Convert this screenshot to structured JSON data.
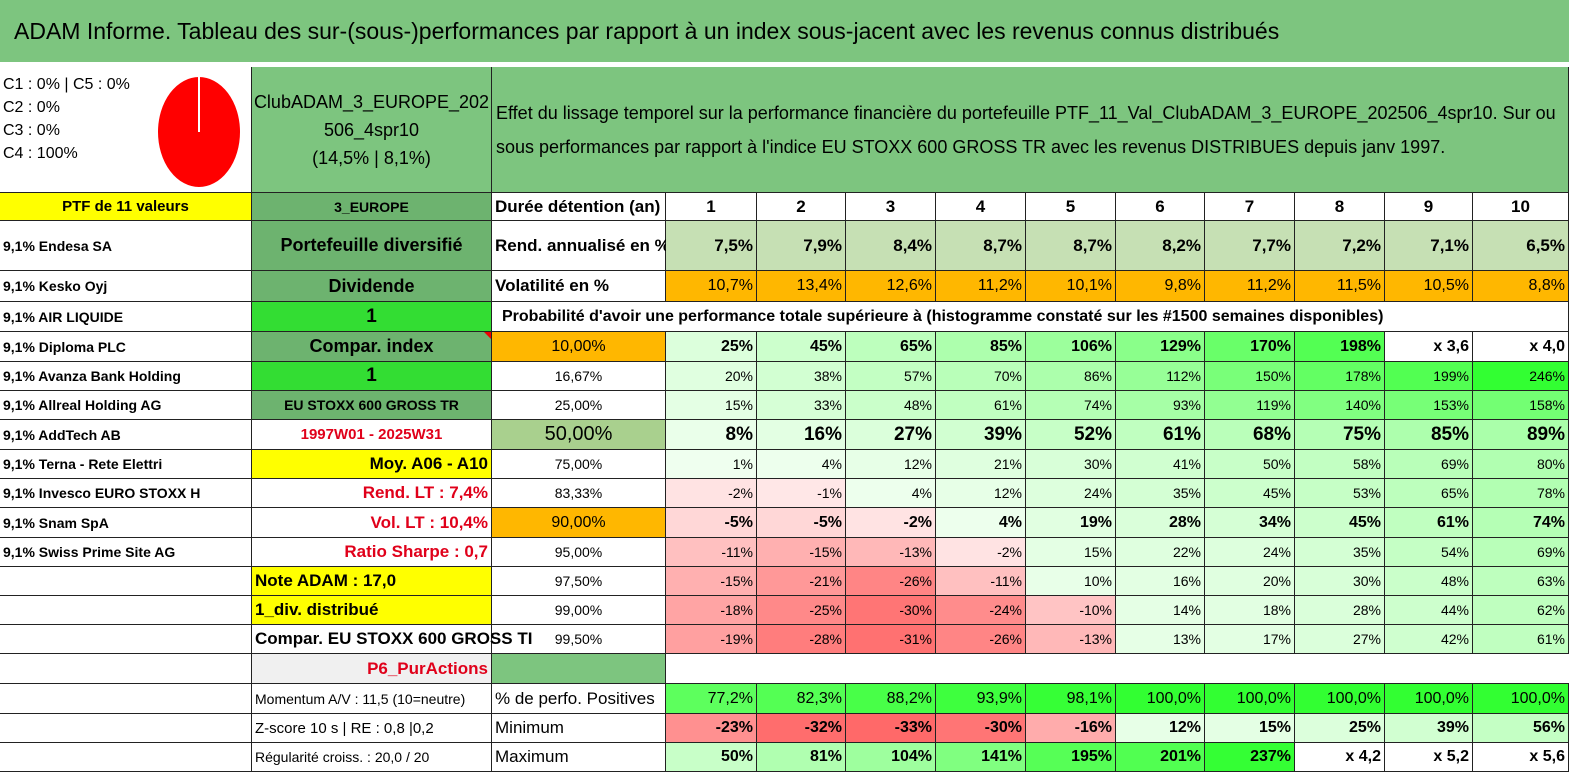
{
  "title": "ADAM Informe. Tableau des sur-(sous-)performances par rapport à un index sous-jacent avec les revenus connus distribués",
  "allocation": {
    "lines": [
      "C1 : 0% | C5 : 0%",
      "C2 : 0%",
      "C3 : 0%",
      "C4 : 100%"
    ],
    "pie_color": "#ff0000",
    "pie_share": 1.0
  },
  "portfolio": {
    "name_line1": "ClubADAM_3_EUROPE_202",
    "name_line2": "506_4spr10",
    "name_line3": "(14,5% | 8,1%)",
    "description": "Effet du lissage temporel sur la performance financière du portefeuille PTF_11_Val_ClubADAM_3_EUROPE_202506_4spr10. Sur ou sous performances par rapport à l'indice EU STOXX 600 GROSS TR avec les revenus DISTRIBUES depuis janv 1997."
  },
  "holdings_header": "PTF de 11 valeurs",
  "holdings": [
    "9,1% Endesa SA",
    "9,1% Kesko Oyj",
    "9,1% AIR LIQUIDE",
    "9,1% Diploma PLC",
    "9,1% Avanza Bank Holding",
    "9,1% Allreal Holding AG",
    "9,1% AddTech AB",
    "9,1% Terna - Rete Elettri",
    "9,1% Invesco EURO STOXX H",
    "9,1% Snam SpA",
    "9,1% Swiss Prime Site AG"
  ],
  "info": [
    "3_EUROPE",
    "Portefeuille diversifié",
    "Dividende",
    "1",
    "Compar. index",
    "1",
    "EU STOXX 600 GROSS TR",
    "1997W01 - 2025W31",
    "Moy. A06 - A10",
    "Rend. LT : 7,4%",
    "Vol. LT : 10,4%",
    "Ratio Sharpe : 0,7",
    "Note ADAM : 17,0",
    "1_div. distribué",
    "Compar. EU STOXX 600 GROSS TI",
    "P6_PurActions",
    "Momentum A/V : 11,5 (10=neutre)",
    "Z-score 10 s | RE : 0,8 |0,2",
    "Régularité croiss. : 20,0 / 20"
  ],
  "table": {
    "duration_label": "Durée détention (an)",
    "years": [
      "1",
      "2",
      "3",
      "4",
      "5",
      "6",
      "7",
      "8",
      "9",
      "10"
    ],
    "return_label": "Rend. annualisé en %",
    "returns": [
      "7,5%",
      "7,9%",
      "8,4%",
      "8,7%",
      "8,7%",
      "8,2%",
      "7,7%",
      "7,2%",
      "7,1%",
      "6,5%"
    ],
    "vol_label": "Volatilité en %",
    "vols": [
      "10,7%",
      "13,4%",
      "12,6%",
      "11,2%",
      "10,1%",
      "9,8%",
      "11,2%",
      "11,5%",
      "10,5%",
      "8,8%"
    ],
    "prob_label": "Probabilité d'avoir une performance totale supérieure à (histogramme constaté sur les #1500 semaines disponibles)",
    "quantiles": [
      {
        "p": "10,00%",
        "v": [
          "25%",
          "45%",
          "65%",
          "85%",
          "106%",
          "129%",
          "170%",
          "198%",
          "x 3,6",
          "x 4,0"
        ]
      },
      {
        "p": "16,67%",
        "v": [
          "20%",
          "38%",
          "57%",
          "70%",
          "86%",
          "112%",
          "150%",
          "178%",
          "199%",
          "246%"
        ]
      },
      {
        "p": "25,00%",
        "v": [
          "15%",
          "33%",
          "48%",
          "61%",
          "74%",
          "93%",
          "119%",
          "140%",
          "153%",
          "158%"
        ]
      },
      {
        "p": "50,00%",
        "v": [
          "8%",
          "16%",
          "27%",
          "39%",
          "52%",
          "61%",
          "68%",
          "75%",
          "85%",
          "89%"
        ]
      },
      {
        "p": "75,00%",
        "v": [
          "1%",
          "4%",
          "12%",
          "21%",
          "30%",
          "41%",
          "50%",
          "58%",
          "69%",
          "80%"
        ]
      },
      {
        "p": "83,33%",
        "v": [
          "-2%",
          "-1%",
          "4%",
          "12%",
          "24%",
          "35%",
          "45%",
          "53%",
          "65%",
          "78%"
        ]
      },
      {
        "p": "90,00%",
        "v": [
          "-5%",
          "-5%",
          "-2%",
          "4%",
          "19%",
          "28%",
          "34%",
          "45%",
          "61%",
          "74%"
        ]
      },
      {
        "p": "95,00%",
        "v": [
          "-11%",
          "-15%",
          "-13%",
          "-2%",
          "15%",
          "22%",
          "24%",
          "35%",
          "54%",
          "69%"
        ]
      },
      {
        "p": "97,50%",
        "v": [
          "-15%",
          "-21%",
          "-26%",
          "-11%",
          "10%",
          "16%",
          "20%",
          "30%",
          "48%",
          "63%"
        ]
      },
      {
        "p": "99,00%",
        "v": [
          "-18%",
          "-25%",
          "-30%",
          "-24%",
          "-10%",
          "14%",
          "18%",
          "28%",
          "44%",
          "62%"
        ]
      },
      {
        "p": "99,50%",
        "v": [
          "-19%",
          "-28%",
          "-31%",
          "-26%",
          "-13%",
          "13%",
          "17%",
          "27%",
          "42%",
          "61%"
        ]
      }
    ],
    "pos_label": "% de perfo. Positives",
    "pos": [
      "77,2%",
      "82,3%",
      "88,2%",
      "93,9%",
      "98,1%",
      "100,0%",
      "100,0%",
      "100,0%",
      "100,0%",
      "100,0%"
    ],
    "min_label": "Minimum",
    "min": [
      "-23%",
      "-32%",
      "-33%",
      "-30%",
      "-16%",
      "12%",
      "15%",
      "25%",
      "39%",
      "56%"
    ],
    "max_label": "Maximum",
    "max": [
      "50%",
      "81%",
      "104%",
      "141%",
      "195%",
      "201%",
      "237%",
      "x 4,2",
      "x 5,2",
      "x 5,6"
    ]
  }
}
